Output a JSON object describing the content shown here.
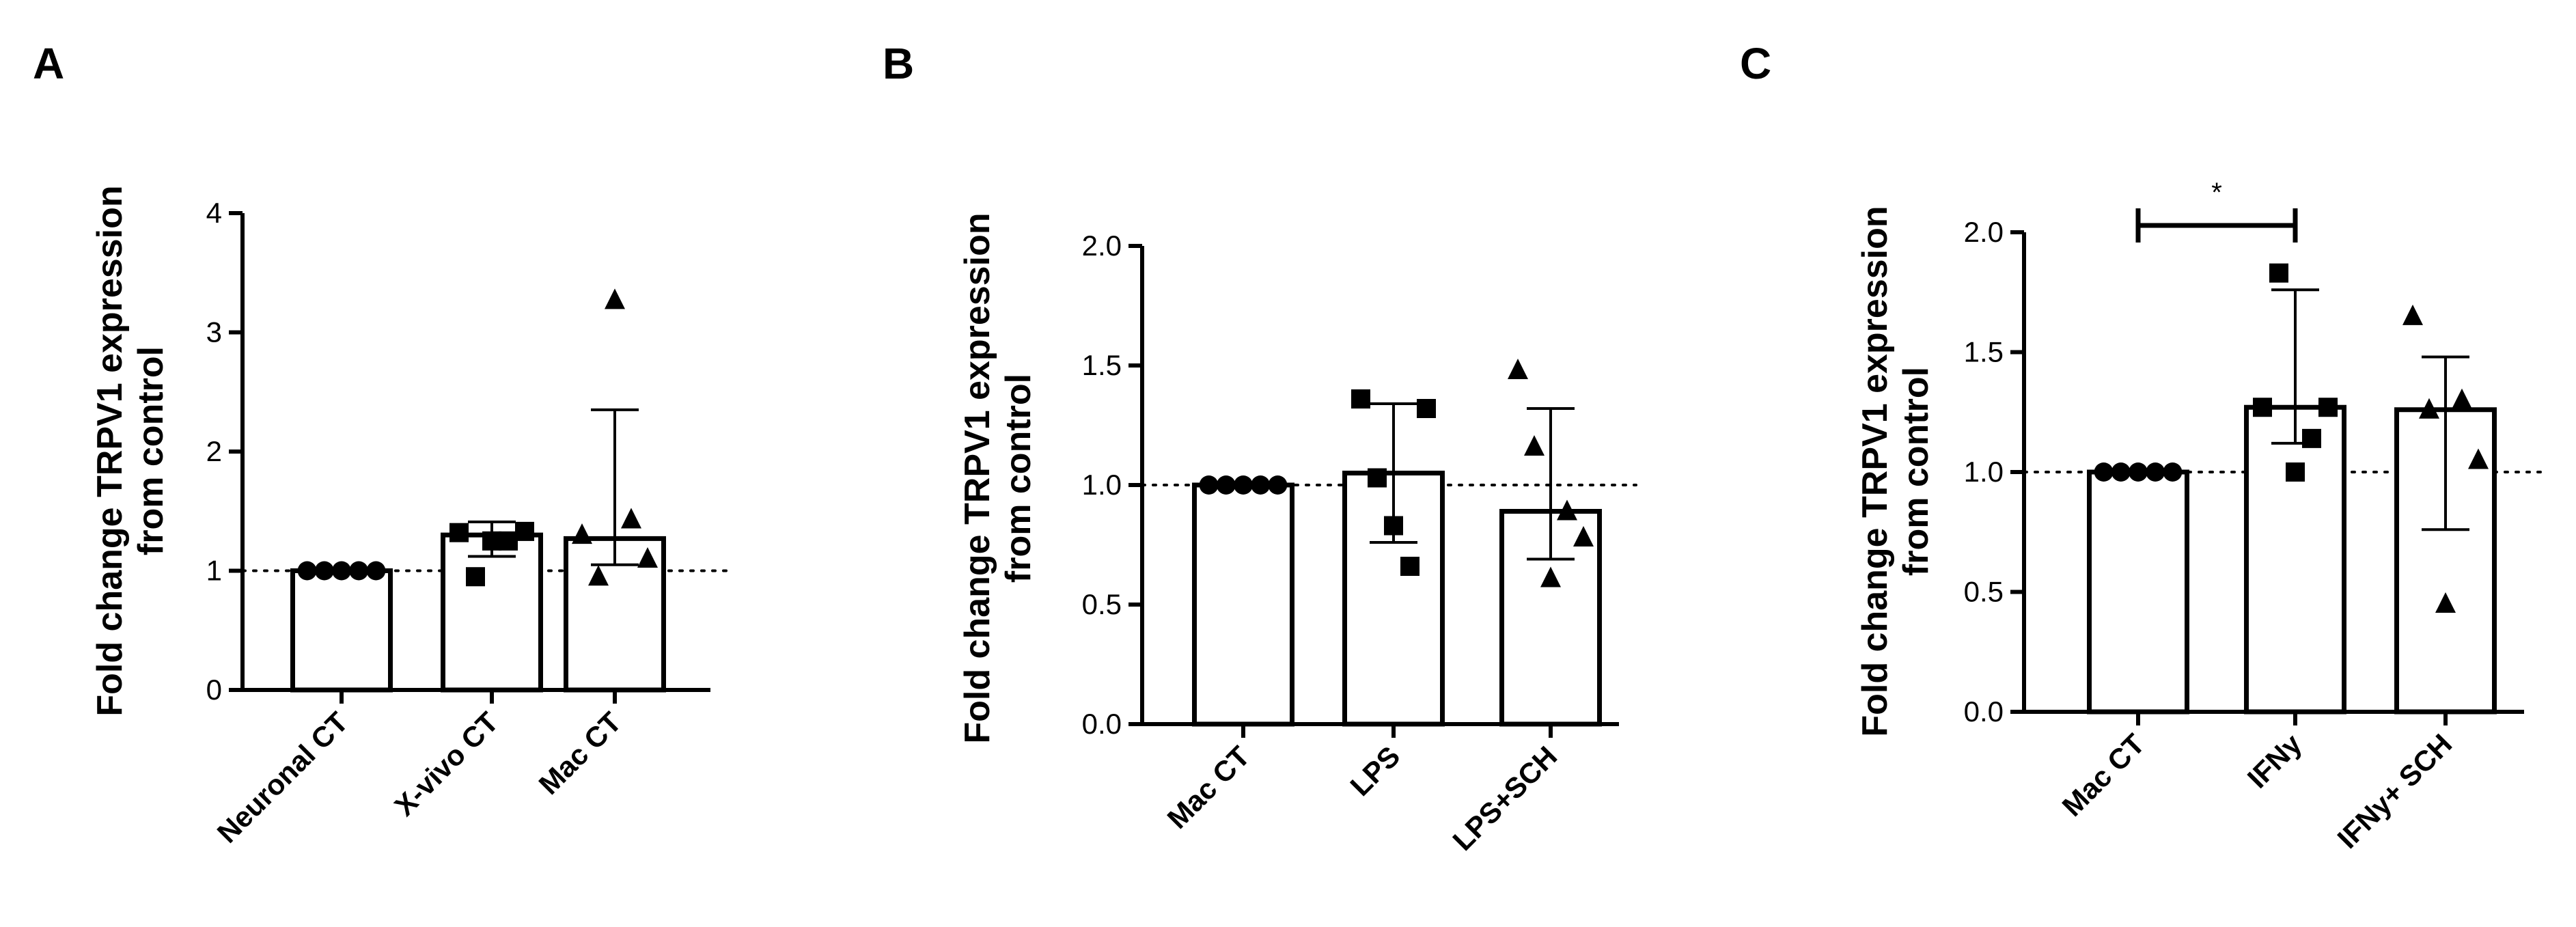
{
  "chart_data": [
    {
      "type": "bar",
      "panel": "A",
      "ylabel": [
        "Fold change TRPV1 expression",
        "from control"
      ],
      "xlabel": "",
      "categories": [
        "Neuronal CT",
        "X-vivo CT",
        "Mac CT"
      ],
      "ylim": [
        0,
        4
      ],
      "yticks": [
        0,
        1,
        2,
        3,
        4
      ],
      "yticks_labels": [
        "0",
        "1",
        "2",
        "3",
        "4"
      ],
      "reference_line": 1,
      "grid": false,
      "bars": [
        {
          "mean": 1.0,
          "sd_low": 1.0,
          "sd_high": 1.0,
          "marker": "circle",
          "points": [
            1,
            1,
            1,
            1,
            1
          ]
        },
        {
          "mean": 1.3,
          "sd_low": 1.12,
          "sd_high": 1.41,
          "marker": "square",
          "points": [
            1.32,
            0.95,
            1.25,
            1.25,
            1.33
          ]
        },
        {
          "mean": 1.27,
          "sd_low": 1.05,
          "sd_high": 2.35,
          "marker": "triangle",
          "points": [
            1.3,
            0.95,
            3.27,
            1.43,
            1.1
          ]
        }
      ],
      "significance": []
    },
    {
      "type": "bar",
      "panel": "B",
      "ylabel": [
        "Fold change TRPV1 expression",
        "from control"
      ],
      "xlabel": "",
      "categories": [
        "Mac CT",
        "LPS",
        "LPS+SCH"
      ],
      "ylim": [
        0,
        2
      ],
      "yticks": [
        0,
        0.5,
        1,
        1.5,
        2
      ],
      "yticks_labels": [
        "0.0",
        "0.5",
        "1.0",
        "1.5",
        "2.0"
      ],
      "reference_line": 1,
      "grid": false,
      "bars": [
        {
          "mean": 1.0,
          "sd_low": 1.0,
          "sd_high": 1.0,
          "marker": "circle",
          "points": [
            1,
            1,
            1,
            1,
            1
          ]
        },
        {
          "mean": 1.05,
          "sd_low": 0.76,
          "sd_high": 1.34,
          "marker": "square",
          "points": [
            1.36,
            1.03,
            0.83,
            0.66,
            1.32
          ]
        },
        {
          "mean": 0.89,
          "sd_low": 0.69,
          "sd_high": 1.32,
          "marker": "triangle",
          "points": [
            1.48,
            1.16,
            0.61,
            0.89,
            0.78
          ]
        }
      ],
      "significance": []
    },
    {
      "type": "bar",
      "panel": "C",
      "ylabel": [
        "Fold change TRPV1 expression",
        "from control"
      ],
      "xlabel": "",
      "categories": [
        "Mac CT",
        "IFNy",
        "IFNy+ SCH"
      ],
      "ylim": [
        0,
        2
      ],
      "yticks": [
        0,
        0.5,
        1,
        1.5,
        2
      ],
      "yticks_labels": [
        "0.0",
        "0.5",
        "1.0",
        "1.5",
        "2.0"
      ],
      "reference_line": 1,
      "grid": false,
      "bars": [
        {
          "mean": 1.0,
          "sd_low": 1.0,
          "sd_high": 1.0,
          "marker": "circle",
          "points": [
            1,
            1,
            1,
            1,
            1
          ]
        },
        {
          "mean": 1.27,
          "sd_low": 1.12,
          "sd_high": 1.76,
          "marker": "square",
          "points": [
            1.27,
            1.83,
            1.0,
            1.14,
            1.27
          ]
        },
        {
          "mean": 1.26,
          "sd_low": 0.76,
          "sd_high": 1.48,
          "marker": "triangle",
          "points": [
            1.65,
            1.26,
            0.45,
            1.3,
            1.05
          ]
        }
      ],
      "significance": [
        {
          "from": 0,
          "to": 1,
          "y": 2.0,
          "label": "*"
        }
      ]
    }
  ]
}
